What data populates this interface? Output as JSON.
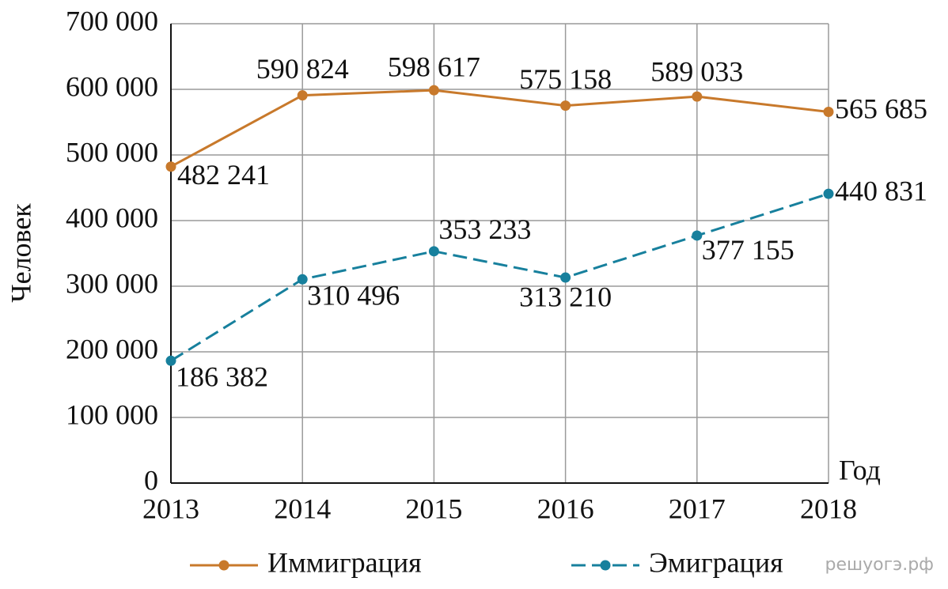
{
  "chart_data": {
    "type": "line",
    "y_label": "Человек",
    "x_label": "Год",
    "watermark": "решуогэ.рф",
    "categories": [
      "2013",
      "2014",
      "2015",
      "2016",
      "2017",
      "2018"
    ],
    "series": [
      {
        "name": "Иммиграция",
        "color": "#c8792b",
        "dash": false,
        "values": [
          482241,
          590824,
          598617,
          575158,
          589033,
          565685
        ],
        "value_labels": [
          "482 241",
          "590 824",
          "598 617",
          "575 158",
          "589 033",
          "565 685"
        ]
      },
      {
        "name": "Эмиграция",
        "color": "#17809d",
        "dash": true,
        "values": [
          186382,
          310496,
          353233,
          313210,
          377155,
          440831
        ],
        "value_labels": [
          "186 382",
          "310 496",
          "353 233",
          "313 210",
          "377 155",
          "440 831"
        ]
      }
    ],
    "ylim": [
      0,
      700000
    ],
    "yticks": [
      0,
      {
        "value": 100000,
        "label": "100 000"
      },
      {
        "value": 200000,
        "label": "200 000"
      },
      {
        "value": 300000,
        "label": "300 000"
      },
      {
        "value": 400000,
        "label": "400 000"
      },
      {
        "value": 500000,
        "label": "500 000"
      },
      {
        "value": 600000,
        "label": "600 000"
      },
      {
        "value": 700000,
        "label": "700 000"
      }
    ],
    "grid": true
  }
}
